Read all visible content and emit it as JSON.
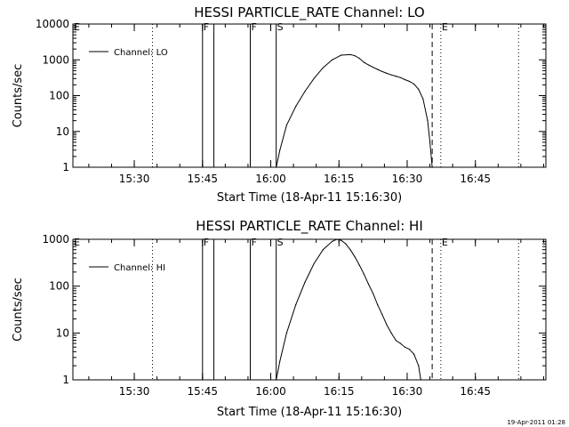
{
  "chart_data": [
    {
      "type": "line",
      "title": "HESSI PARTICLE_RATE Channel: LO",
      "xlabel": "Start Time (18-Apr-11 15:16:30)",
      "ylabel": "Counts/sec",
      "yscale": "log",
      "ylim": [
        1,
        10000
      ],
      "ytick_labels": [
        "1",
        "10",
        "100",
        "1000",
        "10000"
      ],
      "xlim_min_after_start": [
        0,
        104
      ],
      "xtick_labels": [
        "15:30",
        "15:45",
        "16:00",
        "16:15",
        "16:30",
        "16:45"
      ],
      "legend": {
        "position": "top-left",
        "entries": [
          "Channel: LO"
        ]
      },
      "grid": false,
      "markers": [
        {
          "label": "E",
          "x": 0,
          "style": "dotted"
        },
        {
          "label": "",
          "x": 17.5,
          "style": "dotted"
        },
        {
          "label": "F",
          "x": 28.5,
          "style": "solid"
        },
        {
          "label": "",
          "x": 31,
          "style": "solid"
        },
        {
          "label": "F",
          "x": 39,
          "style": "solid"
        },
        {
          "label": "S",
          "x": 44.7,
          "style": "solid"
        },
        {
          "label": "",
          "x": 79,
          "style": "dashed"
        },
        {
          "label": "E",
          "x": 80.9,
          "style": "dotted"
        },
        {
          "label": "",
          "x": 98,
          "style": "dotted"
        }
      ],
      "series": [
        {
          "name": "Channel: LO",
          "x": [
            44.7,
            45.5,
            47,
            49,
            51,
            53,
            55,
            57,
            59,
            61,
            62,
            63,
            64,
            65,
            66,
            67,
            68,
            69,
            70,
            71,
            72,
            73,
            74,
            75,
            76,
            77,
            78,
            78.5,
            79
          ],
          "y": [
            1,
            3,
            15,
            50,
            130,
            300,
            600,
            1000,
            1350,
            1400,
            1300,
            1100,
            850,
            720,
            620,
            540,
            470,
            420,
            380,
            350,
            320,
            280,
            250,
            210,
            150,
            80,
            20,
            5,
            1
          ]
        }
      ]
    },
    {
      "type": "line",
      "title": "HESSI PARTICLE_RATE Channel: HI",
      "xlabel": "Start Time (18-Apr-11 15:16:30)",
      "ylabel": "Counts/sec",
      "yscale": "log",
      "ylim": [
        1,
        1000
      ],
      "ytick_labels": [
        "1",
        "10",
        "100",
        "1000"
      ],
      "xlim_min_after_start": [
        0,
        104
      ],
      "xtick_labels": [
        "15:30",
        "15:45",
        "16:00",
        "16:15",
        "16:30",
        "16:45"
      ],
      "legend": {
        "position": "top-left",
        "entries": [
          "Channel: HI"
        ]
      },
      "grid": false,
      "markers": [
        {
          "label": "E",
          "x": 0,
          "style": "dotted"
        },
        {
          "label": "",
          "x": 17.5,
          "style": "dotted"
        },
        {
          "label": "F",
          "x": 28.5,
          "style": "solid"
        },
        {
          "label": "",
          "x": 31,
          "style": "solid"
        },
        {
          "label": "F",
          "x": 39,
          "style": "solid"
        },
        {
          "label": "S",
          "x": 44.7,
          "style": "solid"
        },
        {
          "label": "",
          "x": 79,
          "style": "dashed"
        },
        {
          "label": "E",
          "x": 80.9,
          "style": "dotted"
        },
        {
          "label": "",
          "x": 98,
          "style": "dotted"
        }
      ],
      "series": [
        {
          "name": "Channel: HI",
          "x": [
            44.7,
            45.5,
            47,
            49,
            51,
            53,
            55,
            57,
            58,
            59,
            60,
            61,
            62,
            63,
            64,
            65,
            66,
            67,
            68,
            69,
            70,
            71,
            72,
            73,
            74,
            75,
            76,
            76.5
          ],
          "y": [
            1,
            2.5,
            10,
            40,
            120,
            300,
            600,
            900,
            1000,
            950,
            800,
            600,
            420,
            280,
            180,
            110,
            70,
            40,
            25,
            15,
            10,
            7,
            6,
            5,
            4.5,
            3.5,
            2,
            1
          ]
        }
      ]
    }
  ],
  "timestamp": "19-Apr-2011 01:28"
}
